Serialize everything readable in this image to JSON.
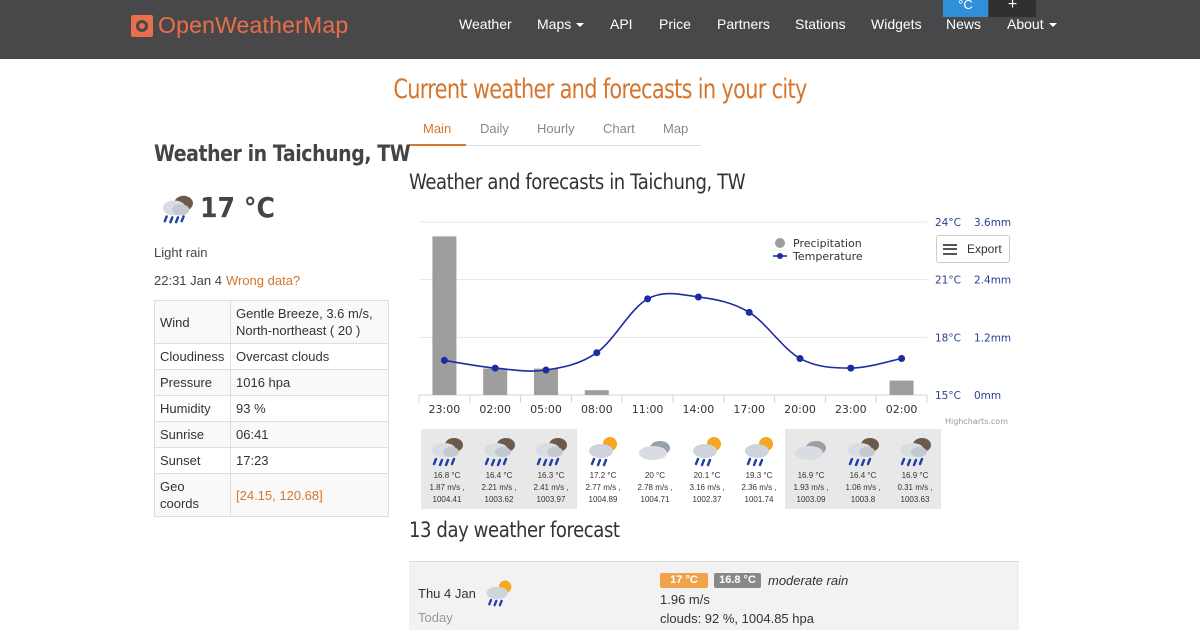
{
  "brand": {
    "name": "OpenWeatherMap",
    "accent": "#eb6e4b",
    "orange": "#d6752c"
  },
  "nav": {
    "items": [
      "Weather",
      "Maps",
      "API",
      "Price",
      "Partners",
      "Stations",
      "Widgets",
      "News",
      "About"
    ],
    "unit_c": "°C",
    "unit_f": "+"
  },
  "headline": "Current weather and forecasts in your city",
  "tabs": [
    "Main",
    "Daily",
    "Hourly",
    "Chart",
    "Map"
  ],
  "current": {
    "title": "Weather in Taichung, TW",
    "temp": "17 °C",
    "description": "Light rain",
    "time": "22:31 Jan 4",
    "wrong_data": "Wrong data?",
    "icon": "rain-cloud-icon"
  },
  "params": [
    {
      "key": "Wind",
      "value": "Gentle Breeze, 3.6 m/s, North-northeast ( 20 )"
    },
    {
      "key": "Cloudiness",
      "value": "Overcast clouds"
    },
    {
      "key": "Pressure",
      "value": "1016 hpa"
    },
    {
      "key": "Humidity",
      "value": "93 %"
    },
    {
      "key": "Sunrise",
      "value": "06:41"
    },
    {
      "key": "Sunset",
      "value": "17:23"
    },
    {
      "key": "Geo coords",
      "value": "[24.15, 120.68]"
    }
  ],
  "chart_title": "Weather and forecasts in Taichung, TW",
  "chart_data": {
    "type": "bar",
    "categories": [
      "23:00",
      "02:00",
      "05:00",
      "08:00",
      "11:00",
      "14:00",
      "17:00",
      "20:00",
      "23:00",
      "02:00"
    ],
    "series": [
      {
        "name": "Precipitation",
        "type": "bar",
        "unit": "mm",
        "values": [
          3.3,
          0.55,
          0.55,
          0.1,
          0,
          0,
          0,
          0,
          0,
          0.3
        ],
        "color": "#9e9e9e"
      },
      {
        "name": "Temperature",
        "type": "line",
        "unit": "°C",
        "values": [
          16.8,
          16.4,
          16.3,
          17.2,
          20,
          20.1,
          19.3,
          16.9,
          16.4,
          16.9
        ],
        "color": "#1c2ca3"
      }
    ],
    "y_left": {
      "ticks": [
        "15°C",
        "18°C",
        "21°C",
        "24°C"
      ],
      "range": [
        15,
        24
      ]
    },
    "y_right": {
      "ticks": [
        "0mm",
        "1.2mm",
        "2.4mm",
        "3.6mm"
      ],
      "range": [
        0,
        3.6
      ]
    },
    "legend_position": "top-right",
    "credit": "Highcharts.com",
    "export_label": "Export"
  },
  "hourly": [
    {
      "temp": "16.8 °C",
      "wind": "1.87 m/s ,",
      "pressure": "1004.41",
      "icon": "rain-cloud-icon",
      "shade": true
    },
    {
      "temp": "16.4 °C",
      "wind": "2.21 m/s ,",
      "pressure": "1003.62",
      "icon": "rain-cloud-icon",
      "shade": true
    },
    {
      "temp": "16.3 °C",
      "wind": "2.41 m/s ,",
      "pressure": "1003.97",
      "icon": "rain-cloud-icon",
      "shade": true
    },
    {
      "temp": "17.2 °C",
      "wind": "2.77 m/s ,",
      "pressure": "1004.89",
      "icon": "sun-rain-icon",
      "shade": false
    },
    {
      "temp": "20 °C",
      "wind": "2.78 m/s ,",
      "pressure": "1004.71",
      "icon": "cloud-icon",
      "shade": false
    },
    {
      "temp": "20.1 °C",
      "wind": "3.16 m/s ,",
      "pressure": "1002.37",
      "icon": "sun-rain-icon",
      "shade": false
    },
    {
      "temp": "19.3 °C",
      "wind": "2.36 m/s ,",
      "pressure": "1001.74",
      "icon": "sun-rain-icon",
      "shade": false
    },
    {
      "temp": "16.9 °C",
      "wind": "1.93 m/s ,",
      "pressure": "1003.09",
      "icon": "cloud-icon",
      "shade": true
    },
    {
      "temp": "16.4 °C",
      "wind": "1.06 m/s ,",
      "pressure": "1003.8",
      "icon": "rain-cloud-icon",
      "shade": true
    },
    {
      "temp": "16.9 °C",
      "wind": "0.31 m/s ,",
      "pressure": "1003.63",
      "icon": "rain-cloud-icon",
      "shade": true
    }
  ],
  "daily_title": "13 day weather forecast",
  "daily": [
    {
      "date": "Thu 4 Jan",
      "sub": "Today",
      "icon": "sun-rain-icon",
      "max": "17 °C",
      "min": "16.8 °C",
      "desc": "moderate rain",
      "wind": "1.96 m/s",
      "clouds": "clouds: 92 %,  1004.85 hpa"
    }
  ]
}
